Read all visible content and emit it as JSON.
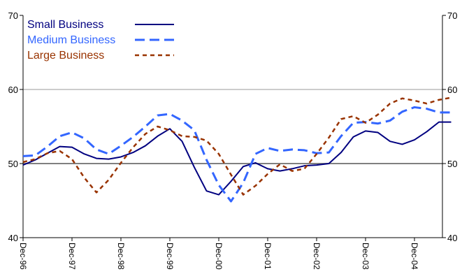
{
  "chart_data": {
    "type": "line",
    "title": "",
    "xlabel": "",
    "ylabel": "",
    "ylim": [
      40,
      70
    ],
    "y_ticks": [
      40,
      50,
      60,
      70
    ],
    "reference_line": 50,
    "grid": "horizontal at 60",
    "legend_position": "top-left",
    "x_range": [
      "Dec-96",
      "Dec-04 + 5 quarters"
    ],
    "x_tick_labels": [
      "Dec-96",
      "Dec-97",
      "Dec-98",
      "Dec-99",
      "Dec-00",
      "Dec-01",
      "Dec-02",
      "Dec-03",
      "Dec-04"
    ],
    "x": [
      "Dec-96",
      "Mar-97",
      "Jun-97",
      "Sep-97",
      "Dec-97",
      "Mar-98",
      "Jun-98",
      "Sep-98",
      "Dec-98",
      "Mar-99",
      "Jun-99",
      "Sep-99",
      "Dec-99",
      "Mar-00",
      "Jun-00",
      "Sep-00",
      "Dec-00",
      "Mar-01",
      "Jun-01",
      "Sep-01",
      "Dec-01",
      "Mar-02",
      "Jun-02",
      "Sep-02",
      "Dec-02",
      "Mar-03",
      "Jun-03",
      "Sep-03",
      "Dec-03",
      "Mar-04",
      "Jun-04",
      "Sep-04",
      "Dec-04",
      "Mar-05",
      "Jun-05",
      "Sep-05"
    ],
    "series": [
      {
        "name": "Small Business",
        "color": "#000080",
        "dash": "solid",
        "values": [
          49.8,
          50.5,
          51.4,
          52.3,
          52.2,
          51.3,
          50.7,
          50.6,
          50.9,
          51.5,
          52.4,
          53.7,
          54.7,
          53.0,
          49.5,
          46.3,
          45.8,
          47.6,
          49.6,
          50.1,
          49.3,
          49.0,
          49.3,
          49.7,
          49.8,
          50.0,
          51.5,
          53.6,
          54.4,
          54.2,
          53.0,
          52.6,
          53.2,
          54.3,
          55.6,
          55.6
        ]
      },
      {
        "name": "Medium Business",
        "color": "#3366FF",
        "dash": "long-dash",
        "values": [
          51.0,
          51.1,
          52.3,
          53.7,
          54.2,
          53.4,
          51.9,
          51.3,
          52.4,
          53.6,
          55.0,
          56.5,
          56.7,
          55.8,
          54.5,
          50.5,
          47.1,
          44.9,
          47.4,
          51.3,
          52.1,
          51.7,
          51.9,
          51.8,
          51.4,
          51.5,
          53.7,
          55.5,
          55.6,
          55.4,
          55.8,
          57.0,
          57.6,
          57.4,
          56.9,
          56.9
        ]
      },
      {
        "name": "Large Business",
        "color": "#993300",
        "dash": "short-dash",
        "values": [
          50.2,
          50.6,
          51.4,
          51.7,
          50.6,
          48.1,
          46.1,
          47.8,
          50.1,
          52.2,
          54.0,
          55.0,
          54.5,
          53.7,
          53.6,
          53.1,
          51.3,
          48.5,
          45.8,
          47.0,
          48.6,
          49.9,
          49.0,
          49.3,
          51.3,
          53.5,
          56.0,
          56.4,
          55.5,
          56.6,
          58.1,
          58.8,
          58.5,
          58.1,
          58.6,
          58.9
        ]
      }
    ]
  }
}
